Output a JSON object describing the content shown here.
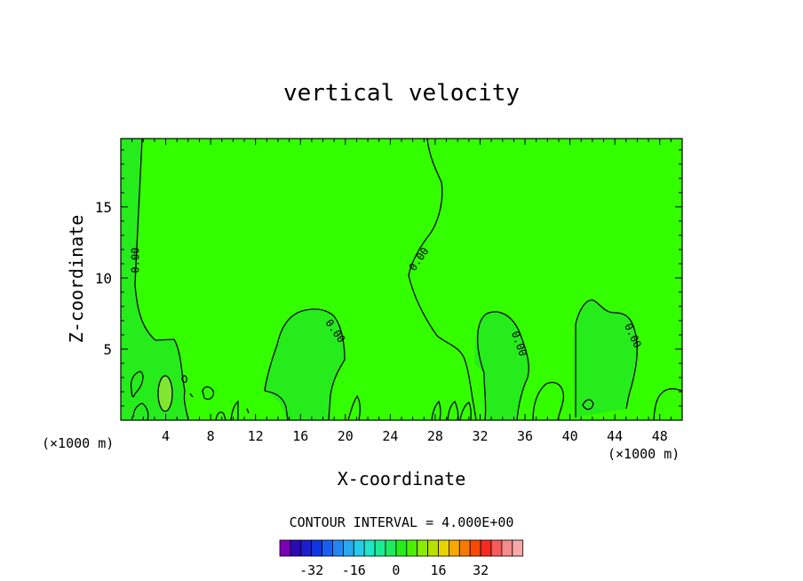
{
  "chart_data": {
    "type": "heatmap",
    "title": "vertical velocity",
    "xlabel": "X-coordinate",
    "ylabel": "Z-coordinate",
    "x_unit_label_left": "(×1000 m)",
    "x_unit_label_right": "(×1000 m)",
    "xlim": [
      0,
      50
    ],
    "ylim": [
      0,
      19.8
    ],
    "x_ticks": [
      4,
      8,
      12,
      16,
      20,
      24,
      28,
      32,
      36,
      40,
      44,
      48
    ],
    "x_tick_labels": [
      "4",
      "8",
      "12",
      "16",
      "20",
      "24",
      "28",
      "32",
      "36",
      "40",
      "44",
      "48"
    ],
    "y_ticks": [
      5,
      10,
      15
    ],
    "y_tick_labels": [
      "5",
      "10",
      "15"
    ],
    "background_color": "#33ff00",
    "contour_label": "0.00",
    "regions": [
      {
        "name": "left-positive",
        "color": "#26ec1c"
      },
      {
        "name": "bump-18",
        "color": "#26ec1c"
      },
      {
        "name": "bump-35",
        "color": "#26ec1c"
      },
      {
        "name": "bump-45",
        "color": "#26ec1c"
      },
      {
        "name": "cell-4",
        "color": "#7fe632"
      }
    ],
    "colorbar": {
      "caption": "CONTOUR INTERVAL = 4.000E+00",
      "interval": 4.0,
      "colors": [
        "#7a00b8",
        "#2a0ab0",
        "#1b1ecf",
        "#0d37e6",
        "#1a5ef0",
        "#2486f2",
        "#26a9f0",
        "#25ccea",
        "#1fe6c8",
        "#1aec95",
        "#1eeb5f",
        "#26ec1c",
        "#4cf000",
        "#8aec00",
        "#b8e000",
        "#e6d400",
        "#f7a800",
        "#f77a00",
        "#f74a00",
        "#f72a20",
        "#f75a5a",
        "#f78a8a",
        "#f7a8a8"
      ],
      "tick_labels": [
        "-32",
        "-16",
        "0",
        "16",
        "32"
      ],
      "tick_values": [
        -32,
        -16,
        0,
        16,
        32
      ]
    }
  }
}
